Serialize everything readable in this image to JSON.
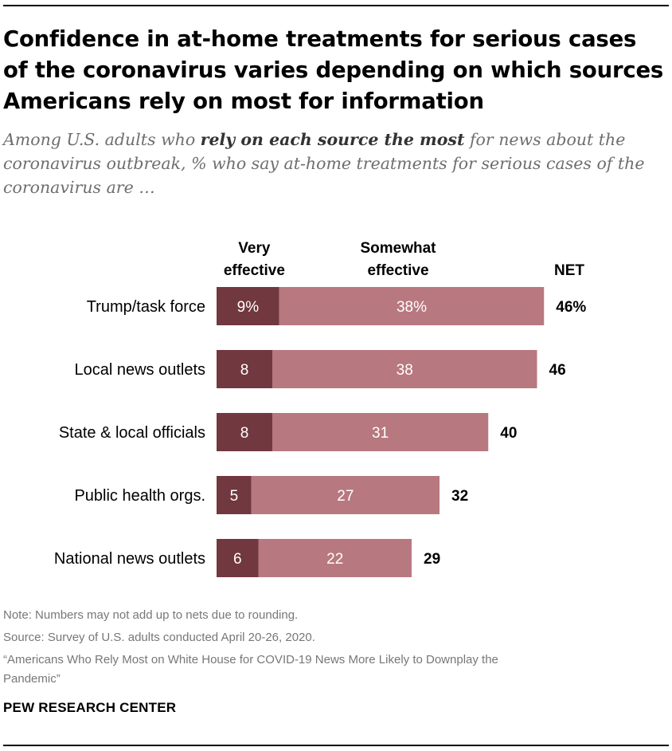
{
  "header": {
    "title": "Confidence in at-home treatments for serious cases of the coronavirus varies depending on which sources Americans rely on most for information",
    "subtitle_pre": "Among U.S. adults who ",
    "subtitle_bold": "rely on each source the most",
    "subtitle_post": " for news about the coronavirus outbreak, % who say at-home treatments for serious cases of the coronavirus are …"
  },
  "chart_data": {
    "type": "bar",
    "orientation": "horizontal",
    "stacked": true,
    "categories": [
      "Trump/task force",
      "Local news outlets",
      "State & local officials",
      "Public health orgs.",
      "National news outlets"
    ],
    "series": [
      {
        "name": "Very effective",
        "values": [
          9,
          8,
          8,
          5,
          6
        ],
        "labels": [
          "9%",
          "8",
          "8",
          "5",
          "6"
        ],
        "color": "#71383f"
      },
      {
        "name": "Somewhat effective",
        "values": [
          38,
          38,
          31,
          27,
          22
        ],
        "labels": [
          "38%",
          "38",
          "31",
          "27",
          "22"
        ],
        "color": "#b87880"
      }
    ],
    "net": {
      "name": "NET",
      "values": [
        46,
        46,
        40,
        32,
        29
      ],
      "labels": [
        "46%",
        "46",
        "40",
        "32",
        "29"
      ]
    },
    "column_headers": {
      "very": [
        "Very",
        "effective"
      ],
      "somewhat": [
        "Somewhat",
        "effective"
      ],
      "net": "NET"
    }
  },
  "footer": {
    "note": "Note: Numbers may not add up to nets due to rounding.",
    "source": "Source: Survey of U.S. adults conducted April 20-26, 2020.",
    "report_line1": "“Americans Who Rely Most on White House for COVID-19 News More Likely to Downplay the",
    "report_line2": "Pandemic”",
    "logo": "PEW RESEARCH CENTER"
  }
}
